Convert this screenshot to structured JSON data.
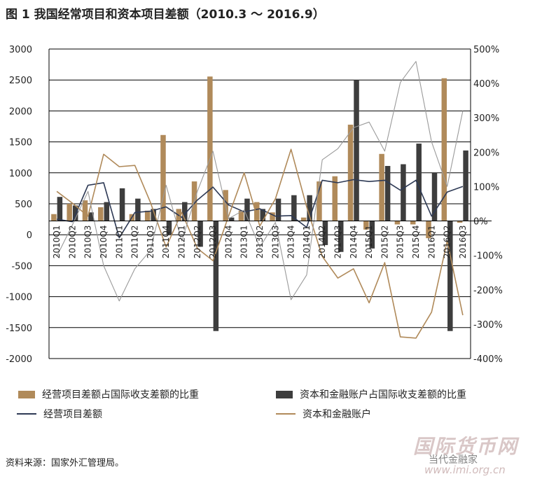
{
  "title": "图 1  我国经常项目和资本项目差额（2010.3 ～ 2016.9）",
  "source": "资料来源：国家外汇管理局。",
  "watermark": {
    "line1": "国际货币网",
    "line2": "当代金融家",
    "line3": "www.imi.org.cn"
  },
  "colors": {
    "ca_bar": "#b08a5a",
    "cfa_bar": "#3d3d3d",
    "ca_line": "#2e3a55",
    "cfa_line": "#b08a5a",
    "grey_line": "#9a9a9a"
  },
  "chart_data": {
    "type": "bar",
    "categories": [
      "2010Q1",
      "2010Q2",
      "2010Q3",
      "2010Q4",
      "2011Q1",
      "2011Q2",
      "2011Q3",
      "2011Q4",
      "2012Q1",
      "2012Q2",
      "2012Q3",
      "2012Q4",
      "2013Q1",
      "2013Q2",
      "2013Q3",
      "2013Q4",
      "2014Q1",
      "2014Q2",
      "2014Q3",
      "2014Q4",
      "2015Q1",
      "2015Q2",
      "2015Q3",
      "2015Q4",
      "2016Q1",
      "2016Q2",
      "2016Q3"
    ],
    "y_left": {
      "min": -2000,
      "max": 3000,
      "step": 500
    },
    "y_right": {
      "min": -400,
      "max": 500,
      "step": 100,
      "unit": "%"
    },
    "series": [
      {
        "name": "经营项目差额占国际收支差额的比重",
        "kind": "bar",
        "axis": "right",
        "values": [
          20,
          50,
          60,
          40,
          0,
          20,
          30,
          250,
          35,
          115,
          420,
          90,
          30,
          55,
          25,
          0,
          10,
          115,
          130,
          280,
          -25,
          195,
          -10,
          -10,
          -50,
          415,
          -5
        ]
      },
      {
        "name": "资本和金融账户占国际收支差额的比重",
        "kind": "bar",
        "axis": "right",
        "values": [
          70,
          45,
          25,
          55,
          95,
          65,
          35,
          -40,
          55,
          -75,
          -320,
          10,
          65,
          35,
          65,
          75,
          75,
          -70,
          -90,
          410,
          -80,
          160,
          165,
          225,
          140,
          -320,
          205
        ]
      },
      {
        "name": "经营项目差额",
        "kind": "line",
        "axis": "left",
        "values": [
          250,
          210,
          800,
          840,
          -50,
          360,
          380,
          450,
          280,
          560,
          770,
          480,
          370,
          420,
          300,
          310,
          120,
          880,
          840,
          890,
          860,
          880,
          720,
          880,
          300,
          690,
          780
        ]
      },
      {
        "name": "资本和金融账户",
        "kind": "line",
        "axis": "left",
        "values": [
          700,
          510,
          300,
          1300,
          1100,
          1120,
          520,
          -200,
          360,
          -220,
          -420,
          300,
          1000,
          140,
          580,
          1380,
          450,
          -350,
          -700,
          -550,
          -1100,
          -450,
          -1650,
          -1670,
          -1250,
          -100,
          -1300
        ]
      },
      {
        "kind": "line",
        "axis": "left",
        "values": [
          -350,
          160,
          700,
          -500,
          -1070,
          -550,
          -250,
          800,
          -100,
          700,
          1350,
          260,
          400,
          -200,
          200,
          -1050,
          -650,
          1210,
          1390,
          1730,
          1820,
          1350,
          2460,
          2800,
          1500,
          780,
          2000
        ]
      }
    ]
  }
}
